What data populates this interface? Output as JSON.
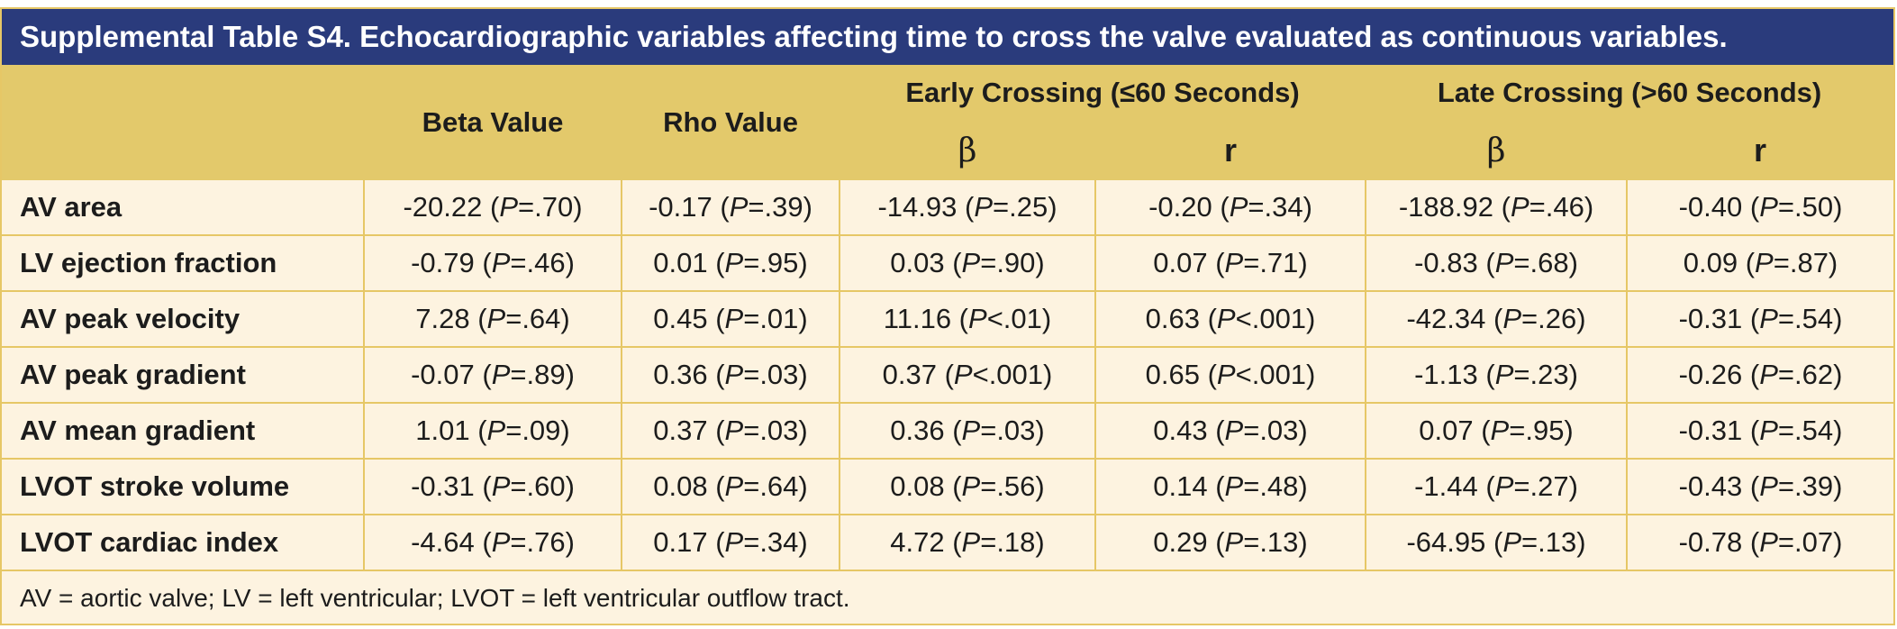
{
  "title": "Supplemental Table S4. Echocardiographic variables affecting time to cross the valve evaluated as continuous variables.",
  "headers": {
    "beta_value": "Beta Value",
    "rho_value": "Rho Value",
    "early_group": "Early Crossing (≤60 Seconds)",
    "late_group": "Late Crossing (>60 Seconds)",
    "beta_symbol": "β",
    "r_symbol": "r"
  },
  "rows": [
    {
      "label": "AV area",
      "cells": [
        [
          "-20.22 (",
          "=.70)"
        ],
        [
          "-0.17 (",
          "=.39)"
        ],
        [
          "-14.93 (",
          "=.25)"
        ],
        [
          "-0.20 (",
          "=.34)"
        ],
        [
          "-188.92 (",
          "=.46)"
        ],
        [
          "-0.40 (",
          "=.50)"
        ]
      ]
    },
    {
      "label": "LV ejection fraction",
      "cells": [
        [
          "-0.79 (",
          "=.46)"
        ],
        [
          "0.01 (",
          "=.95)"
        ],
        [
          "0.03 (",
          "=.90)"
        ],
        [
          "0.07 (",
          "=.71)"
        ],
        [
          "-0.83 (",
          "=.68)"
        ],
        [
          "0.09 (",
          "=.87)"
        ]
      ]
    },
    {
      "label": "AV peak velocity",
      "cells": [
        [
          "7.28 (",
          "=.64)"
        ],
        [
          "0.45 (",
          "=.01)"
        ],
        [
          "11.16 (",
          "<.01)"
        ],
        [
          "0.63 (",
          "<.001)"
        ],
        [
          "-42.34 (",
          "=.26)"
        ],
        [
          "-0.31 (",
          "=.54)"
        ]
      ]
    },
    {
      "label": "AV peak gradient",
      "cells": [
        [
          "-0.07 (",
          "=.89)"
        ],
        [
          "0.36 (",
          "=.03)"
        ],
        [
          "0.37 (",
          "<.001)"
        ],
        [
          "0.65 (",
          "<.001)"
        ],
        [
          "-1.13 (",
          "=.23)"
        ],
        [
          "-0.26 (",
          "=.62)"
        ]
      ]
    },
    {
      "label": "AV mean gradient",
      "cells": [
        [
          "1.01 (",
          "=.09)"
        ],
        [
          "0.37 (",
          "=.03)"
        ],
        [
          "0.36 (",
          "=.03)"
        ],
        [
          "0.43 (",
          "=.03)"
        ],
        [
          "0.07 (",
          "=.95)"
        ],
        [
          "-0.31 (",
          "=.54)"
        ]
      ]
    },
    {
      "label": "LVOT stroke volume",
      "cells": [
        [
          "-0.31 (",
          "=.60)"
        ],
        [
          "0.08 (",
          "=.64)"
        ],
        [
          "0.08 (",
          "=.56)"
        ],
        [
          "0.14 (",
          "=.48)"
        ],
        [
          "-1.44 (",
          "=.27)"
        ],
        [
          "-0.43 (",
          "=.39)"
        ]
      ]
    },
    {
      "label": "LVOT cardiac index",
      "cells": [
        [
          "-4.64 (",
          "=.76)"
        ],
        [
          "0.17 (",
          "=.34)"
        ],
        [
          "4.72 (",
          "=.18)"
        ],
        [
          "0.29 (",
          "=.13)"
        ],
        [
          "-64.95 (",
          "=.13)"
        ],
        [
          "-0.78 (",
          "=.07)"
        ]
      ]
    }
  ],
  "p_letter": "P",
  "footnote": "AV = aortic valve; LV = left ventricular; LVOT = left ventricular outflow tract.",
  "colors": {
    "title_bg": "#2a3b7c",
    "header_bg": "#e3c96b",
    "body_bg": "#fdf3e0",
    "border": "#e6c766"
  }
}
